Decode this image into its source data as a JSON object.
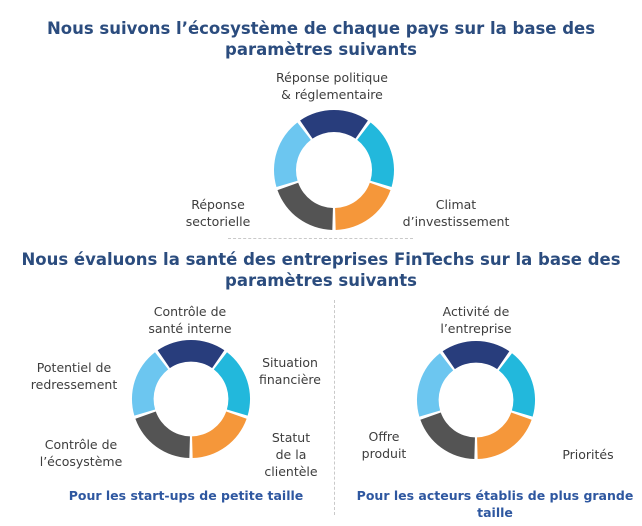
{
  "colors": {
    "navy": "#283d7c",
    "teal": "#22b8dc",
    "orange": "#f5973a",
    "dark_gray": "#545454",
    "light_blue": "#6cc6f0",
    "heading": "#2b4c7e",
    "caption": "#2e57a0"
  },
  "section1": {
    "title": "Nous suivons l’écosystème de chaque pays sur la base des\nparamètres suivants",
    "labels": {
      "top": "Réponse politique\n& réglementaire",
      "right": "Climat\nd’investissement",
      "left": "Réponse\nsectorielle"
    }
  },
  "section2": {
    "title": "Nous évaluons la santé des entreprises FinTechs sur la base des\nparamètres suivants",
    "left_diagram": {
      "labels": {
        "top": "Contrôle de\nsanté interne",
        "right_top": "Situation\nfinancière",
        "right_bottom": "Statut\nde la\nclientèle",
        "left_top": "Potentiel de\nredressement",
        "left_bottom": "Contrôle de\nl’écosystème"
      },
      "caption": "Pour les start-ups de petite taille"
    },
    "right_diagram": {
      "labels": {
        "top": "Activité de\nl’entreprise",
        "left": "Offre\nproduit",
        "right": "Priorités"
      },
      "caption": "Pour les acteurs établis de plus grande\ntaille"
    }
  }
}
